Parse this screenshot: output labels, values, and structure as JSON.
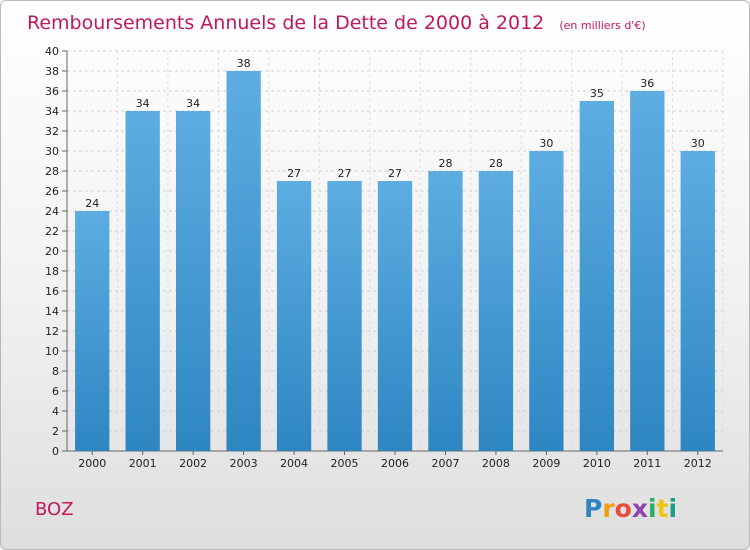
{
  "chart_data": {
    "type": "bar",
    "title": "Remboursements Annuels de la Dette de 2000 à 2012",
    "unit": "(en milliers d'€)",
    "categories": [
      "2000",
      "2001",
      "2002",
      "2003",
      "2004",
      "2005",
      "2006",
      "2007",
      "2008",
      "2009",
      "2010",
      "2011",
      "2012"
    ],
    "values": [
      24,
      34,
      34,
      38,
      27,
      27,
      27,
      28,
      28,
      30,
      35,
      36,
      30
    ],
    "ylim": [
      0,
      40
    ],
    "ytick_step": 2,
    "grid": true,
    "bar_color_top": "#5dade2",
    "bar_color_bottom": "#2e86c1"
  },
  "footer": {
    "commune": "BOZ",
    "logo_letters": [
      "P",
      "r",
      "o",
      "x",
      "i",
      "t",
      "i"
    ],
    "logo_colors": [
      "#2e86c1",
      "#f39c12",
      "#e74c3c",
      "#8e44ad",
      "#27ae60",
      "#f1c40f",
      "#16a085"
    ]
  }
}
